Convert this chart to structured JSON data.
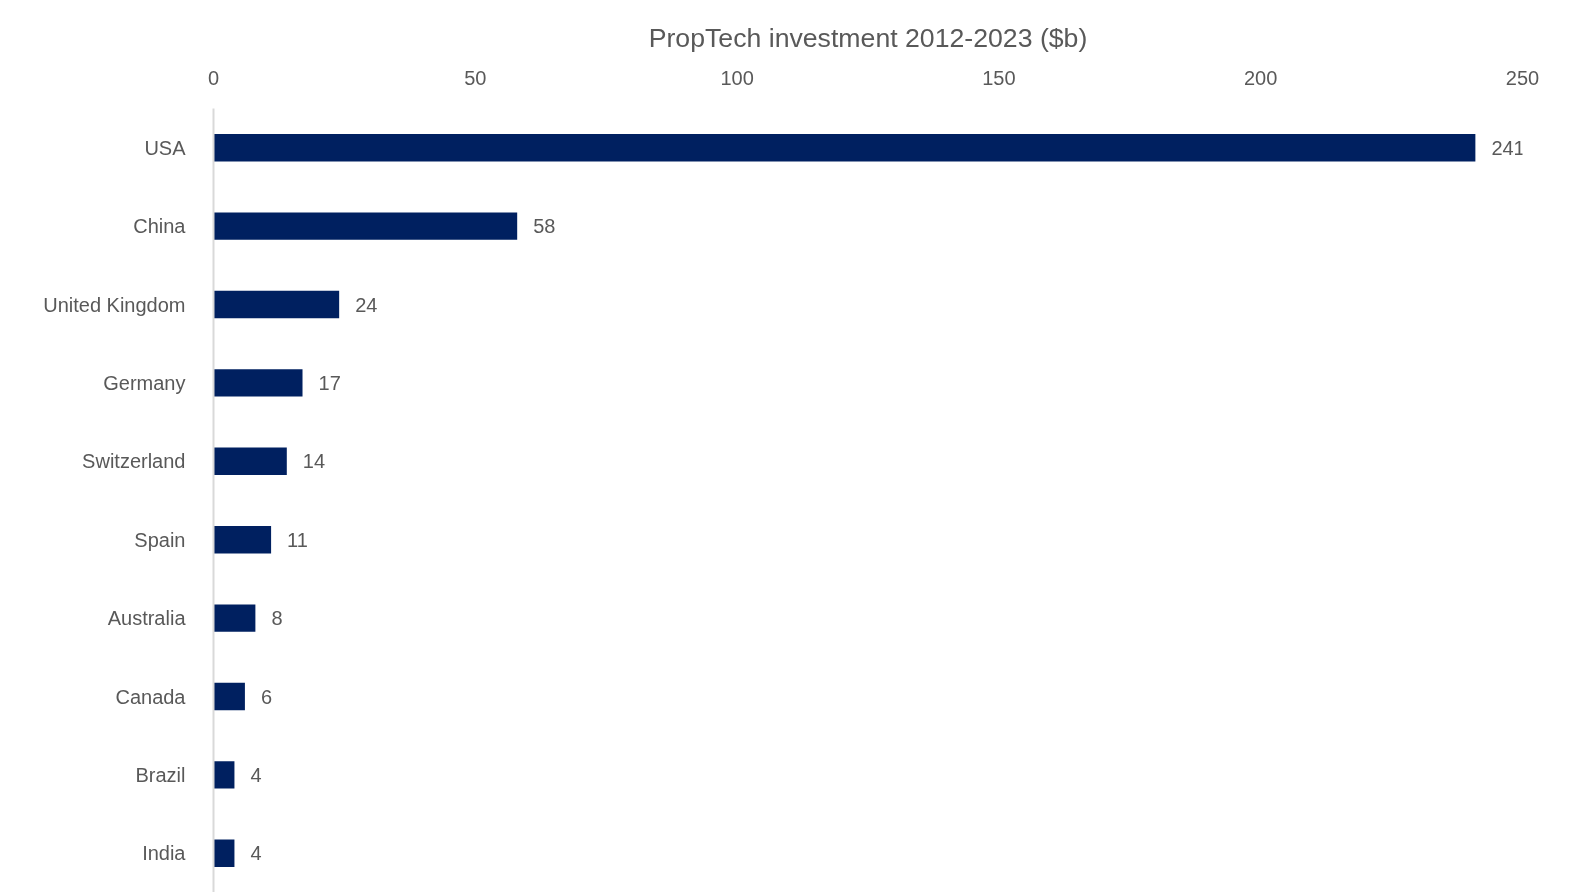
{
  "chart_data": {
    "type": "bar",
    "orientation": "horizontal",
    "title": "PropTech investment 2012-2023 ($b)",
    "categories": [
      "USA",
      "China",
      "United Kingdom",
      "Germany",
      "Switzerland",
      "Spain",
      "Australia",
      "Canada",
      "Brazil",
      "India"
    ],
    "values": [
      241,
      58,
      24,
      17,
      14,
      11,
      8,
      6,
      4,
      4
    ],
    "color": "#002060",
    "xlim": [
      0,
      250
    ],
    "xticks": [
      0,
      50,
      100,
      150,
      200,
      250
    ],
    "grid": false,
    "data_labels": true
  }
}
